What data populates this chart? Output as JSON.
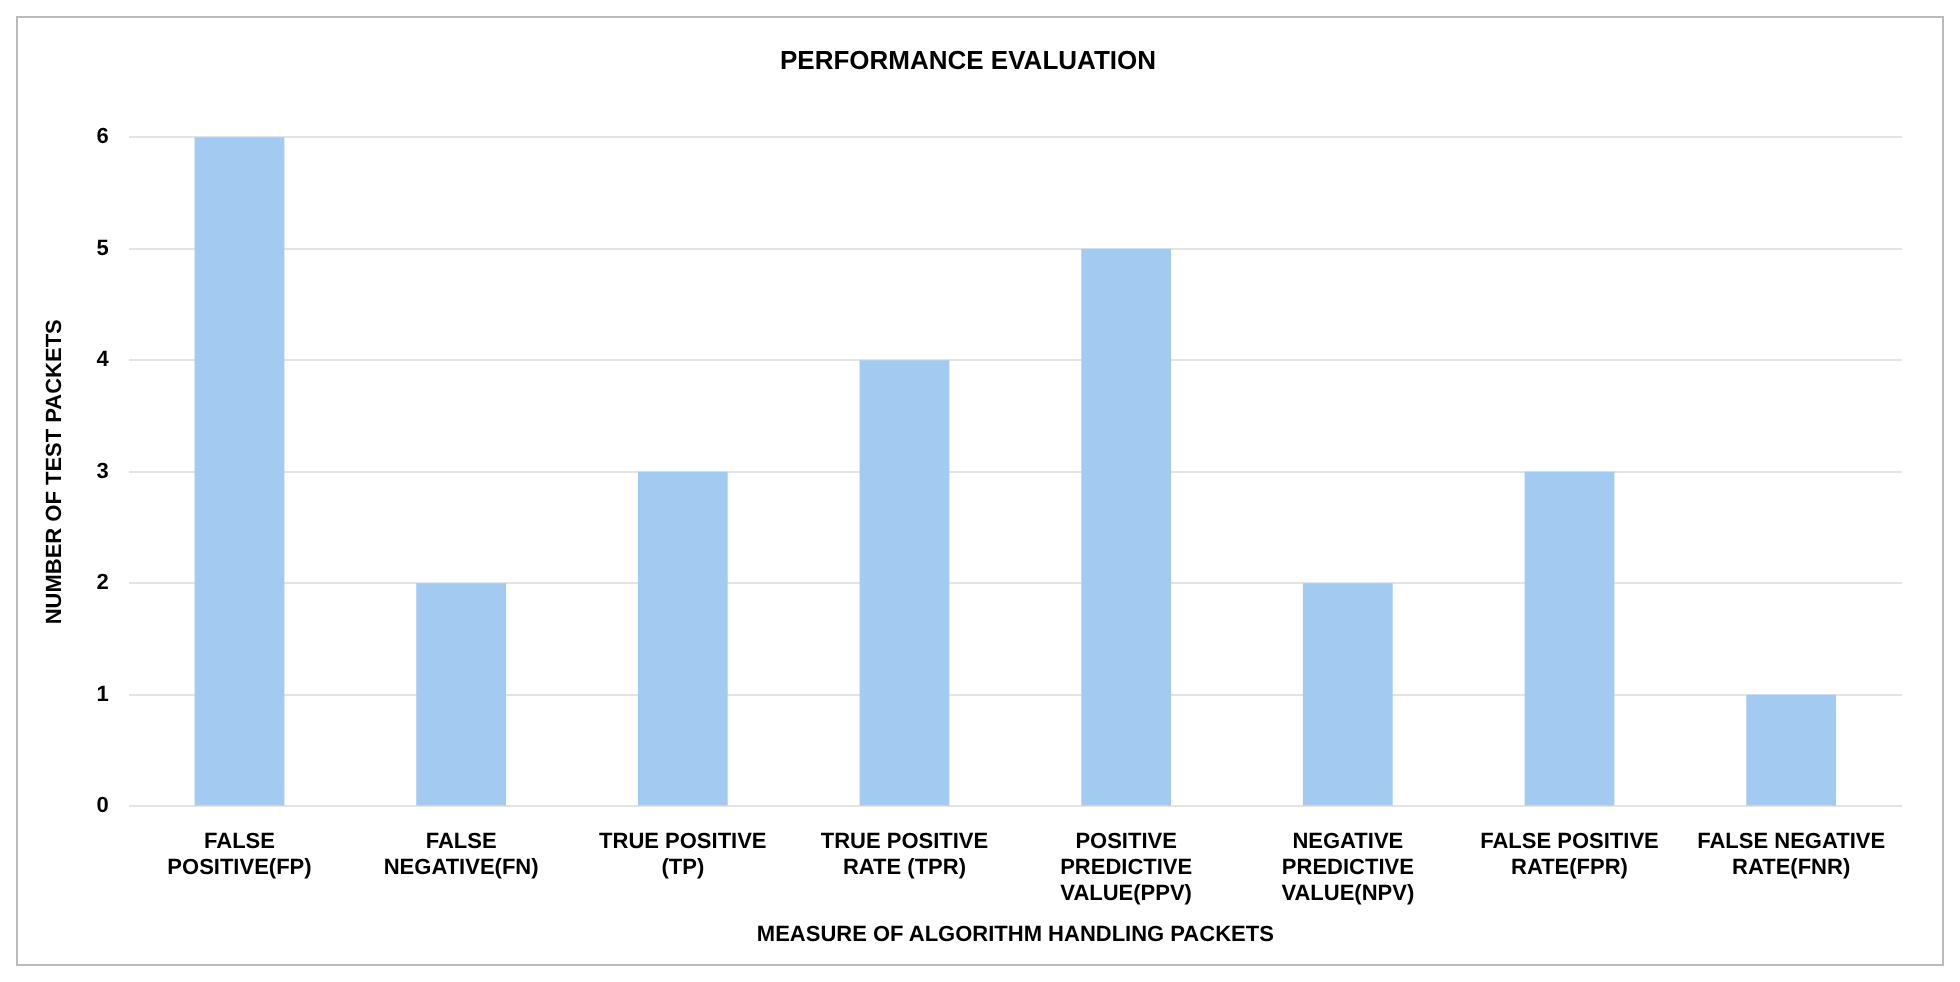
{
  "chart_data": {
    "type": "bar",
    "title": "PERFORMANCE EVALUATION",
    "xlabel": "MEASURE OF ALGORITHM HANDLING PACKETS",
    "ylabel": "NUMBER OF TEST PACKETS",
    "categories": [
      "FALSE POSITIVE(FP)",
      "FALSE NEGATIVE(FN)",
      "TRUE POSITIVE (TP)",
      "TRUE POSITIVE RATE (TPR)",
      "POSITIVE PREDICTIVE VALUE(PPV)",
      "NEGATIVE PREDICTIVE VALUE(NPV)",
      "FALSE POSITIVE RATE(FPR)",
      "FALSE NEGATIVE RATE(FNR)"
    ],
    "values": [
      6,
      2,
      3,
      4,
      5,
      2,
      3,
      1
    ],
    "color": "#a3cbf2",
    "ylim": [
      0,
      6
    ],
    "yticks": [
      0,
      1,
      2,
      3,
      4,
      5,
      6
    ],
    "grid": "y",
    "legend": false
  }
}
